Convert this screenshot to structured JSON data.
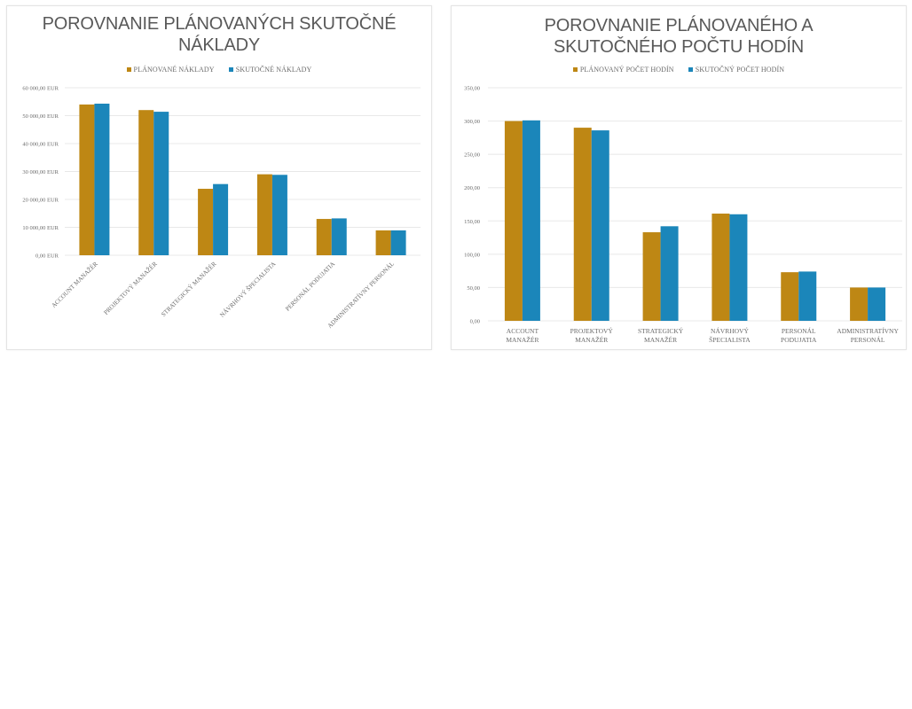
{
  "colors": {
    "planned": "#BE8714",
    "actual": "#1B86BA",
    "grid": "#e8e8e8",
    "axis_text": "#6b6b6b",
    "title_text": "#595959"
  },
  "chart_data": [
    {
      "type": "bar",
      "title": "POROVNANIE PLÁNOVANÝCH SKUTOČNÉ NÁKLADY",
      "title_lines": [
        "POROVNANIE PLÁNOVANÝCH SKUTOČNÉ",
        "NÁKLADY"
      ],
      "xlabel": "",
      "ylabel": "",
      "ylim": [
        0,
        60000
      ],
      "grid": true,
      "legend_position": "top",
      "y_ticks": [
        "0,00 EUR",
        "10 000,00 EUR",
        "20 000,00 EUR",
        "30 000,00 EUR",
        "40 000,00 EUR",
        "50 000,00 EUR",
        "60 000,00 EUR"
      ],
      "x_label_rotation": -45,
      "categories": [
        "ACCOUNT MANAŽÉR",
        "PROJEKTOVÝ MANAŽÉR",
        "STRATEGICKÝ MANAŽÉR",
        "NÁVRHOVÝ ŠPECIALISTA",
        "PERSONÁL PODUJATIA",
        "ADMINISTRATÍVNY PERSONÁL"
      ],
      "series": [
        {
          "name": "PLÁNOVANÉ NÁKLADY",
          "color": "#BE8714",
          "values": [
            54000,
            52000,
            23800,
            29000,
            13000,
            8900
          ]
        },
        {
          "name": "SKUTOČNÉ NÁKLADY",
          "color": "#1B86BA",
          "values": [
            54300,
            51400,
            25500,
            28800,
            13200,
            8900
          ]
        }
      ]
    },
    {
      "type": "bar",
      "title": "POROVNANIE PLÁNOVANÉHO A SKUTOČNÉHO POČTU HODÍN",
      "title_lines": [
        "POROVNANIE PLÁNOVANÉHO A",
        "SKUTOČNÉHO POČTU HODÍN"
      ],
      "xlabel": "",
      "ylabel": "",
      "ylim": [
        0,
        350
      ],
      "grid": true,
      "legend_position": "top",
      "y_ticks": [
        "0,00",
        "50,00",
        "100,00",
        "150,00",
        "200,00",
        "250,00",
        "300,00",
        "350,00"
      ],
      "x_label_rotation": 0,
      "categories": [
        "ACCOUNT MANAŽÉR",
        "PROJEKTOVÝ MANAŽÉR",
        "STRATEGICKÝ MANAŽÉR",
        "NÁVRHOVÝ ŠPECIALISTA",
        "PERSONÁL PODUJATIA",
        "ADMINISTRATÍVNY PERSONÁL"
      ],
      "category_lines": [
        [
          "ACCOUNT",
          "MANAŽÉR"
        ],
        [
          "PROJEKTOVÝ",
          "MANAŽÉR"
        ],
        [
          "STRATEGICKÝ",
          "MANAŽÉR"
        ],
        [
          "NÁVRHOVÝ",
          "ŠPECIALISTA"
        ],
        [
          "PERSONÁL",
          "PODUJATIA"
        ],
        [
          "ADMINISTRATÍVNY",
          "PERSONÁL"
        ]
      ],
      "series": [
        {
          "name": "PLÁNOVANÝ POČET HODÍN",
          "color": "#BE8714",
          "values": [
            300,
            290,
            133,
            161,
            73,
            50
          ]
        },
        {
          "name": "SKUTOČNÝ POČET HODÍN",
          "color": "#1B86BA",
          "values": [
            301,
            286,
            142,
            160,
            74,
            50
          ]
        }
      ]
    }
  ]
}
